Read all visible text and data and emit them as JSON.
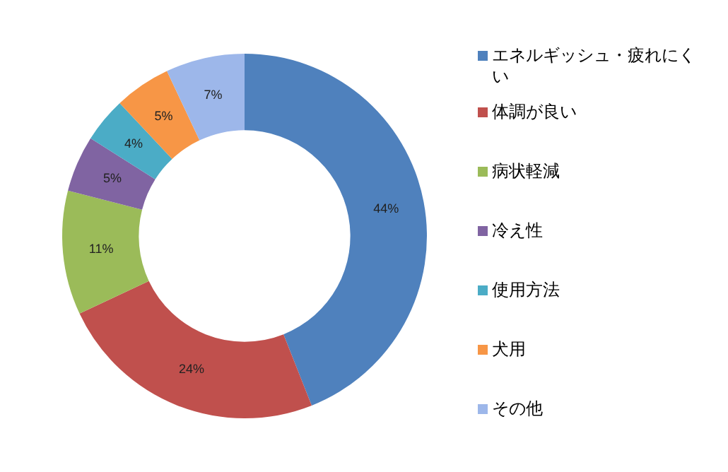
{
  "chart_data": {
    "type": "donut",
    "categories": [
      "エネルギッシュ・疲れにくい",
      "体調が良い",
      "病状軽減",
      "冷え性",
      "使用方法",
      "犬用",
      "その他"
    ],
    "values": [
      44,
      24,
      11,
      5,
      4,
      5,
      7
    ],
    "colors": [
      "#4f81bd",
      "#c0504d",
      "#9bbb59",
      "#8064a2",
      "#4bacc6",
      "#f79646",
      "#9db7ea"
    ],
    "value_labels": [
      "44%",
      "24%",
      "11%",
      "5%",
      "4%",
      "5%",
      "7%"
    ],
    "legend": "right"
  }
}
